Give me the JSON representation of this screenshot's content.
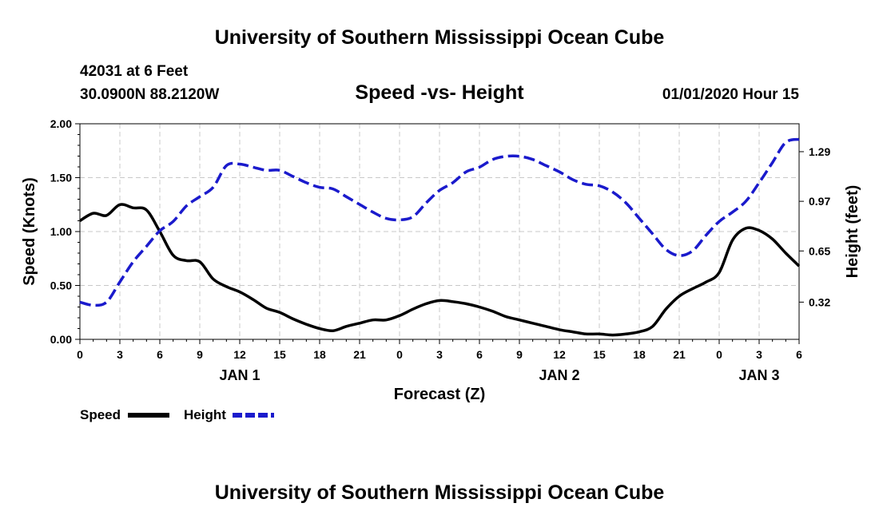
{
  "header": {
    "title_top": "University of Southern Mississippi Ocean Cube",
    "title_bottom": "University of Southern Mississippi Ocean Cube",
    "station": "42031 at 6 Feet",
    "coords": "30.0900N 88.2120W",
    "timestamp": "01/01/2020 Hour 15"
  },
  "colors": {
    "speed": "#000000",
    "height": "#1a1acc",
    "grid": "#c8c8c8"
  },
  "chart_data": {
    "type": "line",
    "title": "Speed -vs- Height",
    "xlabel": "Forecast (Z)",
    "ylabel": "Speed (Knots)",
    "y2label": "Height (feet)",
    "xlim": [
      0,
      54
    ],
    "ylim": [
      0,
      2
    ],
    "y2lim": [
      0.08,
      1.47
    ],
    "x_tick_labels": [
      "0",
      "3",
      "6",
      "9",
      "12",
      "15",
      "18",
      "21",
      "0",
      "3",
      "6",
      "9",
      "12",
      "15",
      "18",
      "21",
      "0",
      "3",
      "6"
    ],
    "y_tick_labels": [
      "0.00",
      "0.50",
      "1.00",
      "1.50",
      "2.00"
    ],
    "y2_tick_labels": [
      "0.32",
      "0.65",
      "0.97",
      "1.29"
    ],
    "day_labels": [
      {
        "text": "JAN 1",
        "x": 12
      },
      {
        "text": "JAN 2",
        "x": 36
      },
      {
        "text": "JAN 3",
        "x": 51
      }
    ],
    "grid": true,
    "legend_position": "bottom-left",
    "series": [
      {
        "name": "Speed",
        "axis": "left",
        "style": "solid",
        "x": [
          0,
          1,
          2,
          3,
          4,
          5,
          6,
          7,
          8,
          9,
          10,
          11,
          12,
          13,
          14,
          15,
          16,
          17,
          18,
          19,
          20,
          21,
          22,
          23,
          24,
          25,
          26,
          27,
          28,
          29,
          30,
          31,
          32,
          33,
          34,
          35,
          36,
          37,
          38,
          39,
          40,
          41,
          42,
          43,
          44,
          45,
          46,
          47,
          48,
          49,
          50,
          51,
          52,
          53,
          54
        ],
        "values": [
          1.1,
          1.17,
          1.15,
          1.25,
          1.22,
          1.2,
          1.0,
          0.78,
          0.73,
          0.72,
          0.56,
          0.49,
          0.44,
          0.37,
          0.29,
          0.25,
          0.19,
          0.14,
          0.1,
          0.08,
          0.12,
          0.15,
          0.18,
          0.18,
          0.22,
          0.28,
          0.33,
          0.36,
          0.35,
          0.33,
          0.3,
          0.26,
          0.21,
          0.18,
          0.15,
          0.12,
          0.09,
          0.07,
          0.05,
          0.05,
          0.04,
          0.05,
          0.07,
          0.12,
          0.28,
          0.4,
          0.47,
          0.53,
          0.62,
          0.92,
          1.03,
          1.01,
          0.93,
          0.8,
          0.68
        ]
      },
      {
        "name": "Height",
        "axis": "right",
        "style": "dashed",
        "x": [
          0,
          1,
          2,
          3,
          4,
          5,
          6,
          7,
          8,
          9,
          10,
          11,
          12,
          13,
          14,
          15,
          16,
          17,
          18,
          19,
          20,
          21,
          22,
          23,
          24,
          25,
          26,
          27,
          28,
          29,
          30,
          31,
          32,
          33,
          34,
          35,
          36,
          37,
          38,
          39,
          40,
          41,
          42,
          43,
          44,
          45,
          46,
          47,
          48,
          49,
          50,
          51,
          52,
          53,
          54
        ],
        "values": [
          0.32,
          0.3,
          0.32,
          0.45,
          0.58,
          0.68,
          0.78,
          0.84,
          0.94,
          1.0,
          1.06,
          1.2,
          1.21,
          1.19,
          1.17,
          1.17,
          1.13,
          1.09,
          1.06,
          1.05,
          1.0,
          0.95,
          0.9,
          0.86,
          0.85,
          0.87,
          0.96,
          1.04,
          1.09,
          1.16,
          1.19,
          1.24,
          1.26,
          1.26,
          1.24,
          1.2,
          1.16,
          1.11,
          1.08,
          1.07,
          1.03,
          0.96,
          0.86,
          0.76,
          0.66,
          0.62,
          0.65,
          0.75,
          0.84,
          0.9,
          0.97,
          1.09,
          1.22,
          1.35,
          1.37
        ]
      }
    ]
  },
  "legend": {
    "speed_label": "Speed",
    "height_label": "Height"
  }
}
